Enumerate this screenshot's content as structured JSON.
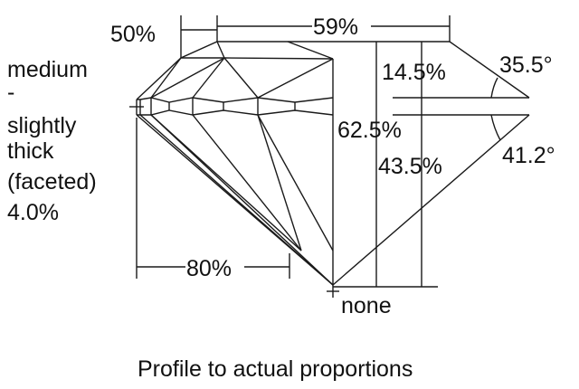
{
  "labels": {
    "crown_height_width": "50%",
    "table": "59%",
    "girdle_line1": "medium",
    "girdle_line2": "-",
    "girdle_line3": "slightly",
    "girdle_line4": "thick",
    "girdle_line5": "(faceted)",
    "girdle_line6": "4.0%",
    "crown_height": "14.5%",
    "crown_angle": "35.5°",
    "total_depth": "62.5%",
    "pavilion_angle": "41.2°",
    "pavilion_depth": "43.5%",
    "lower_half": "80%",
    "culet": "none"
  },
  "caption": "Profile to actual proportions"
}
